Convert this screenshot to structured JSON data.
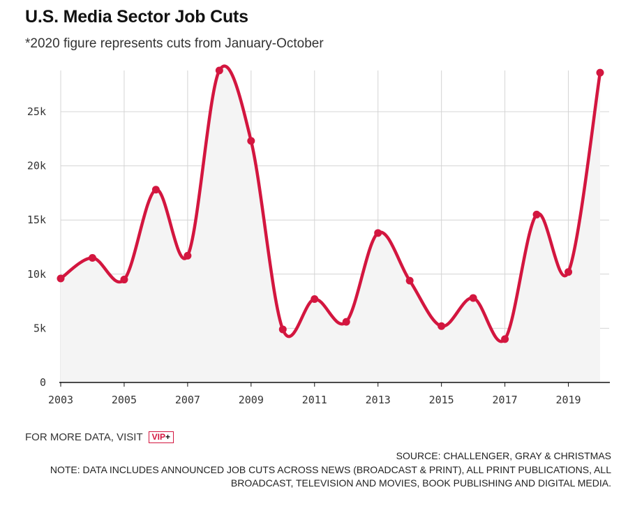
{
  "header": {
    "title": "U.S. Media Sector Job Cuts",
    "subtitle": "*2020 figure represents cuts from January-October"
  },
  "footer": {
    "more_data_label": "FOR MORE DATA, VISIT",
    "vip_badge": "VIP",
    "vip_plus": "+",
    "source": "SOURCE: CHALLENGER, GRAY & CHRISTMAS",
    "note": "NOTE: DATA INCLUDES ANNOUNCED JOB CUTS ACROSS NEWS (BROADCAST & PRINT), ALL PRINT PUBLICATIONS, ALL BROADCAST, TELEVISION AND MOVIES, BOOK PUBLISHING AND DIGITAL MEDIA."
  },
  "colors": {
    "line": "#d3163f",
    "area": "#f4f4f4",
    "grid": "#d4d4d4",
    "axis": "#111111"
  },
  "chart_data": {
    "type": "area",
    "title": "U.S. Media Sector Job Cuts",
    "subtitle": "*2020 figure represents cuts from January-October",
    "xlabel": "",
    "ylabel": "",
    "x": [
      2003,
      2004,
      2005,
      2006,
      2007,
      2008,
      2009,
      2010,
      2011,
      2012,
      2013,
      2014,
      2015,
      2016,
      2017,
      2018,
      2019,
      2020
    ],
    "series": [
      {
        "values": [
          9600,
          11500,
          9500,
          17800,
          11700,
          28800,
          22300,
          4900,
          7700,
          5600,
          13800,
          9400,
          5200,
          7800,
          4000,
          15500,
          10200,
          28600
        ]
      }
    ],
    "xlim": [
      2003,
      2020
    ],
    "ylim": [
      0,
      28800
    ],
    "x_ticks": [
      2003,
      2005,
      2007,
      2009,
      2011,
      2013,
      2015,
      2017,
      2019
    ],
    "x_tick_labels": [
      "2003",
      "2005",
      "2007",
      "2009",
      "2011",
      "2013",
      "2015",
      "2017",
      "2019"
    ],
    "y_ticks": [
      0,
      5000,
      10000,
      15000,
      20000,
      25000
    ],
    "y_tick_labels": [
      "0",
      "5k",
      "10k",
      "15k",
      "20k",
      "25k"
    ],
    "grid": true,
    "curve": "smooth",
    "markers": true
  }
}
